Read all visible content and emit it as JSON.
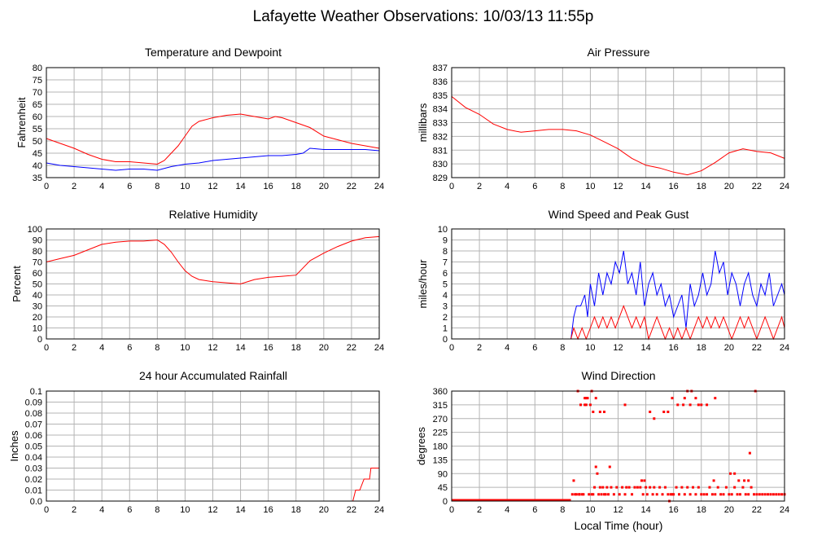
{
  "page_title": "Lafayette Weather Observations: 10/03/13 11:55p",
  "x_axis_label": "Local Time (hour)",
  "chart_data": [
    {
      "id": "temp",
      "type": "line",
      "title": "Temperature and Dewpoint",
      "ylabel": "Fahrenheit",
      "xlim": [
        0,
        24
      ],
      "ylim": [
        35,
        80
      ],
      "yticks": [
        35,
        40,
        45,
        50,
        55,
        60,
        65,
        70,
        75,
        80
      ],
      "xticks": [
        0,
        2,
        4,
        6,
        8,
        10,
        12,
        14,
        16,
        18,
        20,
        22,
        24
      ],
      "grid": true,
      "series": [
        {
          "color": "#ff0000",
          "x": [
            0,
            1,
            2,
            3,
            4,
            5,
            6,
            7,
            8,
            8.5,
            9,
            9.5,
            10,
            10.5,
            11,
            12,
            13,
            14,
            15,
            16,
            16.5,
            17,
            18,
            19,
            20,
            21,
            22,
            23,
            24
          ],
          "y": [
            51,
            49,
            47,
            44.5,
            42.5,
            41.5,
            41.5,
            41,
            40.5,
            42,
            45,
            48,
            52,
            56,
            58,
            59.5,
            60.5,
            61,
            60,
            59,
            60,
            59.5,
            57.5,
            55.5,
            52,
            50.5,
            49,
            48,
            47
          ]
        },
        {
          "color": "#0000ff",
          "x": [
            0,
            1,
            2,
            3,
            4,
            5,
            6,
            7,
            8,
            9,
            10,
            11,
            12,
            13,
            14,
            15,
            16,
            17,
            18,
            18.5,
            19,
            20,
            21,
            22,
            23,
            24
          ],
          "y": [
            41,
            40,
            39.5,
            39,
            38.5,
            38,
            38.5,
            38.5,
            38,
            39.5,
            40.5,
            41,
            42,
            42.5,
            43,
            43.5,
            44,
            44,
            44.5,
            45,
            47,
            46.5,
            46.5,
            46.5,
            46.5,
            46
          ]
        }
      ]
    },
    {
      "id": "pressure",
      "type": "line",
      "title": "Air Pressure",
      "ylabel": "millibars",
      "xlim": [
        0,
        24
      ],
      "ylim": [
        829,
        837
      ],
      "yticks": [
        829,
        830,
        831,
        832,
        833,
        834,
        835,
        836,
        837
      ],
      "xticks": [
        0,
        2,
        4,
        6,
        8,
        10,
        12,
        14,
        16,
        18,
        20,
        22,
        24
      ],
      "grid": true,
      "series": [
        {
          "color": "#ff0000",
          "x": [
            0,
            1,
            2,
            3,
            4,
            5,
            6,
            7,
            8,
            9,
            10,
            11,
            12,
            13,
            14,
            15,
            16,
            17,
            18,
            19,
            20,
            21,
            22,
            23,
            24
          ],
          "y": [
            834.9,
            834.1,
            833.6,
            832.9,
            832.5,
            832.3,
            832.4,
            832.5,
            832.5,
            832.4,
            832.1,
            831.6,
            831.1,
            830.4,
            829.9,
            829.7,
            829.4,
            829.2,
            829.5,
            830.1,
            830.8,
            831.1,
            830.9,
            830.8,
            830.4
          ]
        }
      ]
    },
    {
      "id": "humidity",
      "type": "line",
      "title": "Relative Humidity",
      "ylabel": "Percent",
      "xlim": [
        0,
        24
      ],
      "ylim": [
        0,
        100
      ],
      "yticks": [
        0,
        10,
        20,
        30,
        40,
        50,
        60,
        70,
        80,
        90,
        100
      ],
      "xticks": [
        0,
        2,
        4,
        6,
        8,
        10,
        12,
        14,
        16,
        18,
        20,
        22,
        24
      ],
      "grid": true,
      "series": [
        {
          "color": "#ff0000",
          "x": [
            0,
            1,
            2,
            3,
            4,
            5,
            6,
            7,
            8,
            8.5,
            9,
            9.5,
            10,
            10.5,
            11,
            12,
            13,
            14,
            15,
            16,
            17,
            18,
            19,
            20,
            21,
            22,
            23,
            24
          ],
          "y": [
            70,
            73,
            76,
            81,
            86,
            88,
            89,
            89,
            90,
            86,
            79,
            70,
            62,
            57,
            54,
            52,
            51,
            50,
            54,
            56,
            57,
            58,
            71,
            78,
            84,
            89,
            92,
            93
          ]
        }
      ]
    },
    {
      "id": "wind",
      "type": "line",
      "title": "Wind Speed and Peak Gust",
      "ylabel": "miles/hour",
      "xlim": [
        0,
        24
      ],
      "ylim": [
        0,
        10
      ],
      "yticks": [
        0,
        1,
        2,
        3,
        4,
        5,
        6,
        7,
        8,
        9,
        10
      ],
      "xticks": [
        0,
        2,
        4,
        6,
        8,
        10,
        12,
        14,
        16,
        18,
        20,
        22,
        24
      ],
      "grid": true,
      "series": [
        {
          "color": "#0000ff",
          "x": [
            0,
            8.6,
            8.8,
            9.0,
            9.3,
            9.6,
            9.8,
            10.0,
            10.3,
            10.6,
            10.9,
            11.2,
            11.5,
            11.8,
            12.1,
            12.4,
            12.7,
            13.0,
            13.3,
            13.6,
            13.9,
            14.2,
            14.5,
            14.8,
            15.1,
            15.4,
            15.7,
            16.0,
            16.3,
            16.6,
            16.9,
            17.2,
            17.5,
            17.8,
            18.1,
            18.4,
            18.7,
            19.0,
            19.3,
            19.6,
            19.9,
            20.2,
            20.5,
            20.8,
            21.1,
            21.4,
            21.7,
            22.0,
            22.3,
            22.6,
            22.9,
            23.2,
            23.5,
            23.8,
            24.0
          ],
          "y": [
            0,
            0,
            2,
            3,
            3,
            4,
            2,
            5,
            3,
            6,
            4,
            6,
            5,
            7,
            6,
            8,
            5,
            6,
            4,
            7,
            3,
            5,
            6,
            4,
            5,
            3,
            4,
            2,
            3,
            4,
            1,
            5,
            3,
            4,
            6,
            4,
            5,
            8,
            6,
            7,
            4,
            6,
            5,
            3,
            5,
            6,
            4,
            3,
            5,
            4,
            6,
            3,
            4,
            5,
            4
          ]
        },
        {
          "color": "#ff0000",
          "x": [
            0,
            8.6,
            8.8,
            9.1,
            9.4,
            9.7,
            10.0,
            10.3,
            10.6,
            10.9,
            11.2,
            11.5,
            11.8,
            12.1,
            12.4,
            12.7,
            13.0,
            13.3,
            13.6,
            13.9,
            14.2,
            14.5,
            14.8,
            15.1,
            15.4,
            15.7,
            16.0,
            16.3,
            16.6,
            16.9,
            17.2,
            17.5,
            17.8,
            18.1,
            18.4,
            18.7,
            19.0,
            19.3,
            19.6,
            19.9,
            20.2,
            20.5,
            20.8,
            21.1,
            21.4,
            21.7,
            22.0,
            22.3,
            22.6,
            22.9,
            23.2,
            23.5,
            23.8,
            24.0
          ],
          "y": [
            0,
            0,
            1,
            0,
            1,
            0,
            1,
            2,
            1,
            2,
            1,
            2,
            1,
            2,
            3,
            2,
            1,
            2,
            1,
            2,
            0,
            1,
            2,
            1,
            0,
            1,
            0,
            1,
            0,
            1,
            0,
            1,
            2,
            1,
            2,
            1,
            2,
            1,
            2,
            1,
            0,
            1,
            2,
            1,
            2,
            1,
            0,
            1,
            2,
            1,
            0,
            1,
            2,
            1
          ]
        }
      ]
    },
    {
      "id": "rain",
      "type": "line",
      "title": "24 hour Accumulated Rainfall",
      "ylabel": "Inches",
      "xlim": [
        0,
        24
      ],
      "ylim": [
        0,
        0.1
      ],
      "yticks": [
        0.0,
        0.01,
        0.02,
        0.03,
        0.04,
        0.05,
        0.06,
        0.07,
        0.08,
        0.09,
        0.1
      ],
      "ytick_labels": [
        "0.0",
        "0.01",
        "0.02",
        "0.03",
        "0.04",
        "0.05",
        "0.06",
        "0.07",
        "0.08",
        "0.09",
        "0.1"
      ],
      "xticks": [
        0,
        2,
        4,
        6,
        8,
        10,
        12,
        14,
        16,
        18,
        20,
        22,
        24
      ],
      "grid": true,
      "series": [
        {
          "color": "#ff0000",
          "x": [
            0,
            22.1,
            22.3,
            22.5,
            22.6,
            22.9,
            23.0,
            23.3,
            23.4,
            24
          ],
          "y": [
            0,
            0,
            0.01,
            0.01,
            0.01,
            0.02,
            0.02,
            0.02,
            0.03,
            0.03
          ]
        }
      ]
    },
    {
      "id": "direction",
      "type": "scatter",
      "title": "Wind Direction",
      "ylabel": "degrees",
      "xlabel": "Local Time (hour)",
      "xlim": [
        0,
        24
      ],
      "ylim": [
        0,
        360
      ],
      "yticks": [
        0,
        45,
        90,
        135,
        180,
        225,
        270,
        315,
        360
      ],
      "xticks": [
        0,
        2,
        4,
        6,
        8,
        10,
        12,
        14,
        16,
        18,
        20,
        22,
        24
      ],
      "grid": true,
      "baseline": {
        "from": 0,
        "to": 8.6,
        "value": 0,
        "color": "#ff0000"
      },
      "series": [
        {
          "color": "#ff0000",
          "x": [
            8.7,
            8.9,
            9.0,
            9.2,
            9.4,
            9.5,
            9.6,
            9.7,
            9.8,
            9.9,
            10.0,
            10.1,
            10.2,
            10.3,
            10.4,
            10.5,
            10.6,
            10.7,
            10.8,
            10.9,
            11.0,
            11.1,
            11.2,
            11.3,
            11.5,
            11.7,
            11.9,
            12.1,
            12.3,
            12.5,
            12.6,
            12.8,
            13.0,
            13.2,
            13.4,
            13.6,
            13.8,
            14.0,
            14.1,
            14.3,
            14.5,
            14.6,
            14.8,
            15.0,
            15.2,
            15.4,
            15.6,
            15.7,
            15.8,
            15.9,
            16.0,
            16.2,
            16.4,
            16.6,
            16.8,
            17.0,
            17.2,
            17.4,
            17.6,
            17.8,
            18.0,
            18.2,
            18.4,
            18.6,
            18.8,
            19.0,
            19.2,
            19.4,
            19.6,
            19.8,
            20.0,
            20.2,
            20.4,
            20.6,
            20.8,
            21.0,
            21.2,
            21.4,
            21.6,
            21.8,
            22.0,
            22.2,
            22.4,
            22.6,
            22.8,
            23.0,
            23.2,
            23.4,
            23.6,
            23.8,
            24.0,
            8.8,
            9.1,
            9.3,
            9.6,
            9.7,
            10.1,
            10.4,
            10.7,
            11.0,
            13.7,
            13.9,
            16.8,
            17.0,
            17.3,
            17.6,
            18.0,
            19.0,
            20.1,
            20.4,
            21.1,
            21.4,
            15.9,
            16.3,
            16.7,
            17.2,
            17.8,
            18.4,
            14.3,
            14.6,
            15.3,
            15.6,
            12.5,
            10.2,
            21.5,
            21.9,
            9.2,
            11.4,
            18.9,
            20.7
          ],
          "y": [
            22,
            22,
            22,
            22,
            22,
            22,
            315,
            337,
            337,
            22,
            315,
            22,
            22,
            45,
            112,
            90,
            22,
            45,
            22,
            45,
            22,
            22,
            45,
            22,
            45,
            22,
            45,
            22,
            45,
            22,
            45,
            45,
            22,
            45,
            45,
            45,
            22,
            45,
            22,
            45,
            22,
            45,
            22,
            45,
            22,
            45,
            22,
            0,
            22,
            22,
            22,
            45,
            22,
            45,
            22,
            45,
            22,
            45,
            22,
            45,
            22,
            22,
            22,
            45,
            22,
            22,
            45,
            22,
            22,
            45,
            22,
            22,
            45,
            22,
            22,
            45,
            22,
            22,
            45,
            22,
            22,
            22,
            22,
            22,
            22,
            22,
            22,
            22,
            22,
            22,
            22,
            67,
            360,
            315,
            337,
            315,
            360,
            337,
            292,
            292,
            67,
            67,
            337,
            360,
            360,
            337,
            315,
            337,
            90,
            90,
            67,
            67,
            337,
            315,
            315,
            315,
            315,
            315,
            292,
            270,
            292,
            292,
            315,
            292,
            157,
            360,
            22,
            112,
            67,
            67
          ]
        }
      ]
    }
  ]
}
